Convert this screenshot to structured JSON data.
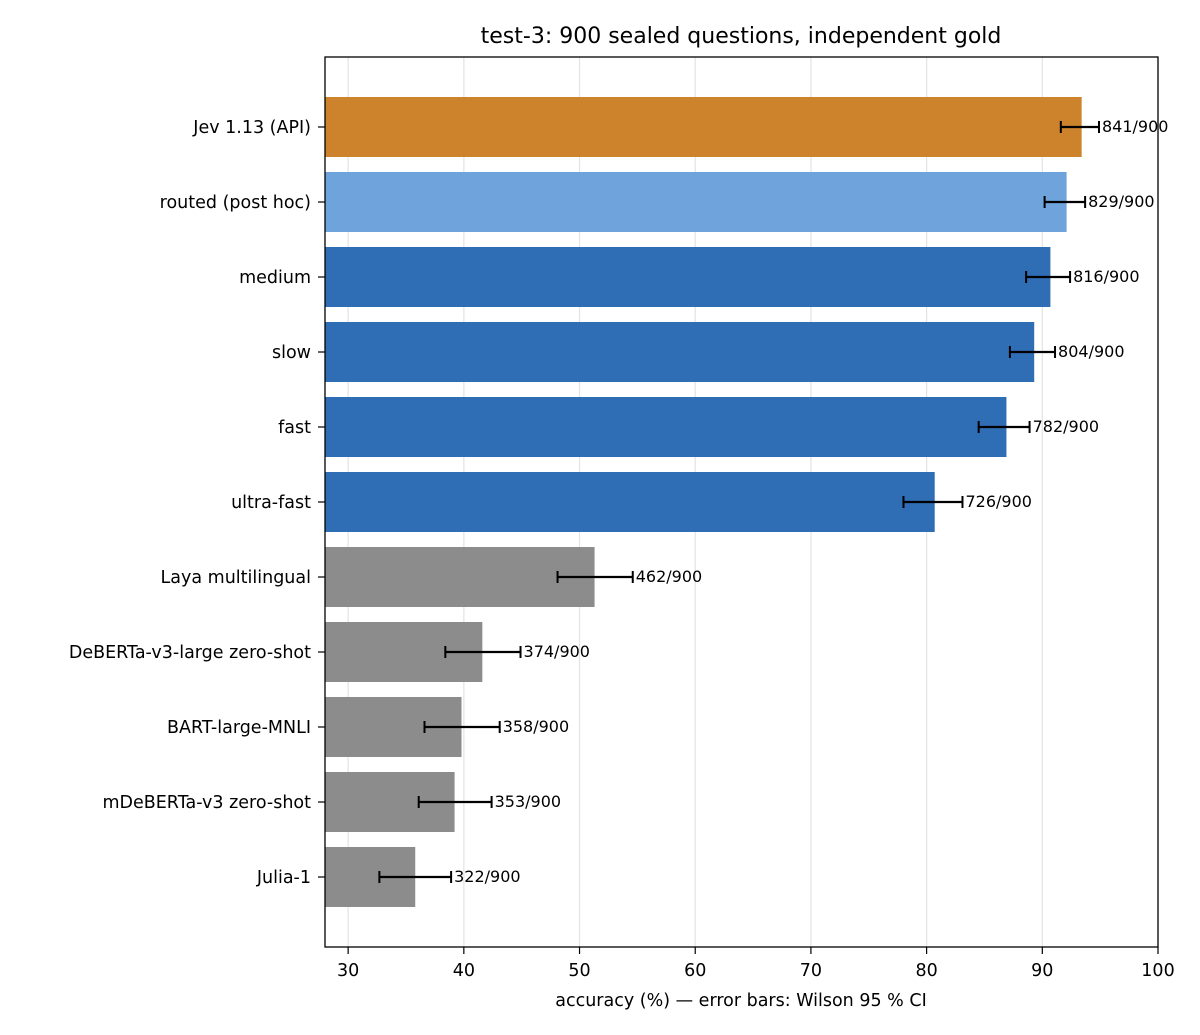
{
  "chart_data": {
    "type": "bar",
    "orientation": "horizontal",
    "title": "test-3: 900 sealed questions, independent gold",
    "xlabel": "accuracy (%) — error bars: Wilson 95 % CI",
    "ylabel": "",
    "xlim": [
      28,
      100
    ],
    "xticks": [
      30,
      40,
      50,
      60,
      70,
      80,
      90,
      100
    ],
    "grid": "vertical",
    "categories": [
      "Jev 1.13 (API)",
      "routed (post hoc)",
      "medium",
      "slow",
      "fast",
      "ultra-fast",
      "Laya multilingual",
      "DeBERTa-v3-large zero-shot",
      "BART-large-MNLI",
      "mDeBERTa-v3 zero-shot",
      "Julia-1"
    ],
    "values": [
      93.4,
      92.1,
      90.7,
      89.3,
      86.9,
      80.7,
      51.3,
      41.6,
      39.8,
      39.2,
      35.8
    ],
    "ci_low": [
      91.6,
      90.2,
      88.6,
      87.2,
      84.5,
      78.0,
      48.1,
      38.4,
      36.6,
      36.1,
      32.7
    ],
    "ci_high": [
      94.9,
      93.7,
      92.4,
      91.1,
      88.9,
      83.1,
      54.6,
      44.9,
      43.1,
      42.4,
      38.9
    ],
    "labels": [
      "841/900",
      "829/900",
      "816/900",
      "804/900",
      "782/900",
      "726/900",
      "462/900",
      "374/900",
      "358/900",
      "353/900",
      "322/900"
    ],
    "colors": [
      "#cd822c",
      "#6fa3db",
      "#2f6db4",
      "#2f6db4",
      "#2f6db4",
      "#2f6db4",
      "#8c8c8c",
      "#8c8c8c",
      "#8c8c8c",
      "#8c8c8c",
      "#8c8c8c"
    ]
  }
}
